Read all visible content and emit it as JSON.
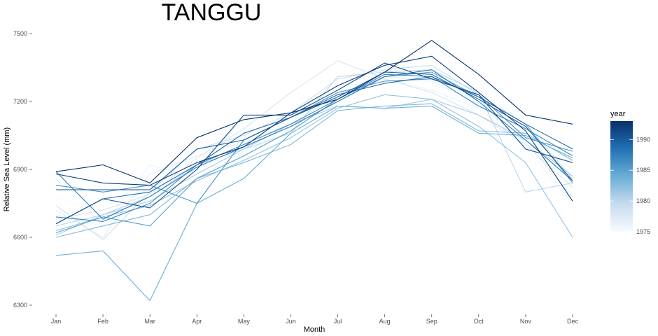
{
  "chart_data": {
    "type": "line",
    "title": "TANGGU",
    "xlabel": "Month",
    "ylabel": "Relative Sea Level (mm)",
    "categories": [
      "Jan",
      "Feb",
      "Mar",
      "Apr",
      "May",
      "Jun",
      "Jul",
      "Aug",
      "Sep",
      "Oct",
      "Nov",
      "Dec"
    ],
    "y_ticks": [
      6300,
      6600,
      6900,
      7200,
      7500
    ],
    "y_tick_labels": [
      "6300",
      "6600",
      "6900",
      "7200",
      "7500"
    ],
    "ylim": [
      6280,
      7540
    ],
    "grid": false,
    "legend": {
      "title": "year",
      "position": "right",
      "type": "colorbar",
      "min": 1975,
      "max": 1993,
      "ticks": [
        1975,
        1980,
        1985,
        1990
      ],
      "tick_labels": [
        "1975",
        "1980",
        "1985",
        "1990"
      ],
      "colors": [
        "#f7fbff",
        "#c6dbef",
        "#6baed6",
        "#2171b5",
        "#08306b"
      ]
    },
    "series": [
      {
        "year": 1975,
        "values": [
          6780,
          6700,
          6820,
          6890,
          6960,
          7040,
          7190,
          7320,
          7280,
          7180,
          7050,
          6900
        ]
      },
      {
        "year": 1976,
        "values": [
          6700,
          6650,
          6920,
          6860,
          6980,
          7070,
          7260,
          7300,
          7250,
          7170,
          7000,
          6750
        ]
      },
      {
        "year": 1977,
        "values": [
          6720,
          6600,
          6880,
          6960,
          7020,
          7100,
          7230,
          7310,
          7290,
          7190,
          7020,
          6780
        ]
      },
      {
        "year": 1978,
        "values": [
          6680,
          6720,
          6790,
          6950,
          7080,
          7240,
          7380,
          7300,
          7240,
          7140,
          7010,
          6820
        ]
      },
      {
        "year": 1979,
        "values": [
          6740,
          6590,
          6800,
          6990,
          7050,
          7150,
          7300,
          7340,
          7360,
          7230,
          7100,
          6860
        ]
      },
      {
        "year": 1980,
        "values": [
          6650,
          6700,
          6780,
          6920,
          6990,
          7060,
          7310,
          7330,
          7340,
          7240,
          6800,
          6840
        ]
      },
      {
        "year": 1981,
        "values": [
          6610,
          6700,
          6760,
          6880,
          6990,
          7100,
          7180,
          7170,
          7210,
          7140,
          7030,
          6870
        ]
      },
      {
        "year": 1982,
        "values": [
          6630,
          6690,
          6740,
          6850,
          6940,
          7040,
          7170,
          7230,
          7210,
          7090,
          6930,
          6600
        ]
      },
      {
        "year": 1983,
        "values": [
          6600,
          6650,
          6700,
          6860,
          6930,
          7010,
          7160,
          7180,
          7190,
          7070,
          7060,
          6940
        ]
      },
      {
        "year": 1984,
        "values": [
          6520,
          6540,
          6320,
          6750,
          6860,
          7060,
          7180,
          7170,
          7180,
          7060,
          7050,
          6950
        ]
      },
      {
        "year": 1985,
        "values": [
          6620,
          6690,
          6650,
          6860,
          6960,
          7070,
          7210,
          7310,
          7330,
          7220,
          7100,
          6840
        ]
      },
      {
        "year": 1986,
        "values": [
          6830,
          6800,
          6830,
          6750,
          7030,
          7130,
          7240,
          7290,
          7300,
          7230,
          7040,
          6980
        ]
      },
      {
        "year": 1987,
        "values": [
          6690,
          6670,
          6750,
          6920,
          7010,
          7100,
          7210,
          7320,
          7310,
          7180,
          7080,
          6960
        ]
      },
      {
        "year": 1988,
        "values": [
          6890,
          6680,
          6780,
          6910,
          7000,
          7090,
          7200,
          7310,
          7340,
          7200,
          7030,
          6850
        ]
      },
      {
        "year": 1989,
        "values": [
          6660,
          6770,
          6800,
          6920,
          7060,
          7130,
          7230,
          7280,
          7310,
          7220,
          7100,
          6990
        ]
      },
      {
        "year": 1990,
        "values": [
          6810,
          6810,
          6810,
          6990,
          7030,
          7130,
          7220,
          7330,
          7320,
          7210,
          7090,
          6850
        ]
      },
      {
        "year": 1991,
        "values": [
          6660,
          6770,
          6730,
          6900,
          7140,
          7140,
          7250,
          7370,
          7300,
          7230,
          6990,
          6930
        ]
      },
      {
        "year": 1992,
        "values": [
          6880,
          6840,
          6830,
          6930,
          7000,
          7150,
          7270,
          7360,
          7400,
          7240,
          7070,
          6760
        ]
      },
      {
        "year": 1993,
        "values": [
          6890,
          6920,
          6840,
          7040,
          7120,
          7150,
          7210,
          7330,
          7470,
          7320,
          7140,
          7100
        ]
      }
    ]
  }
}
